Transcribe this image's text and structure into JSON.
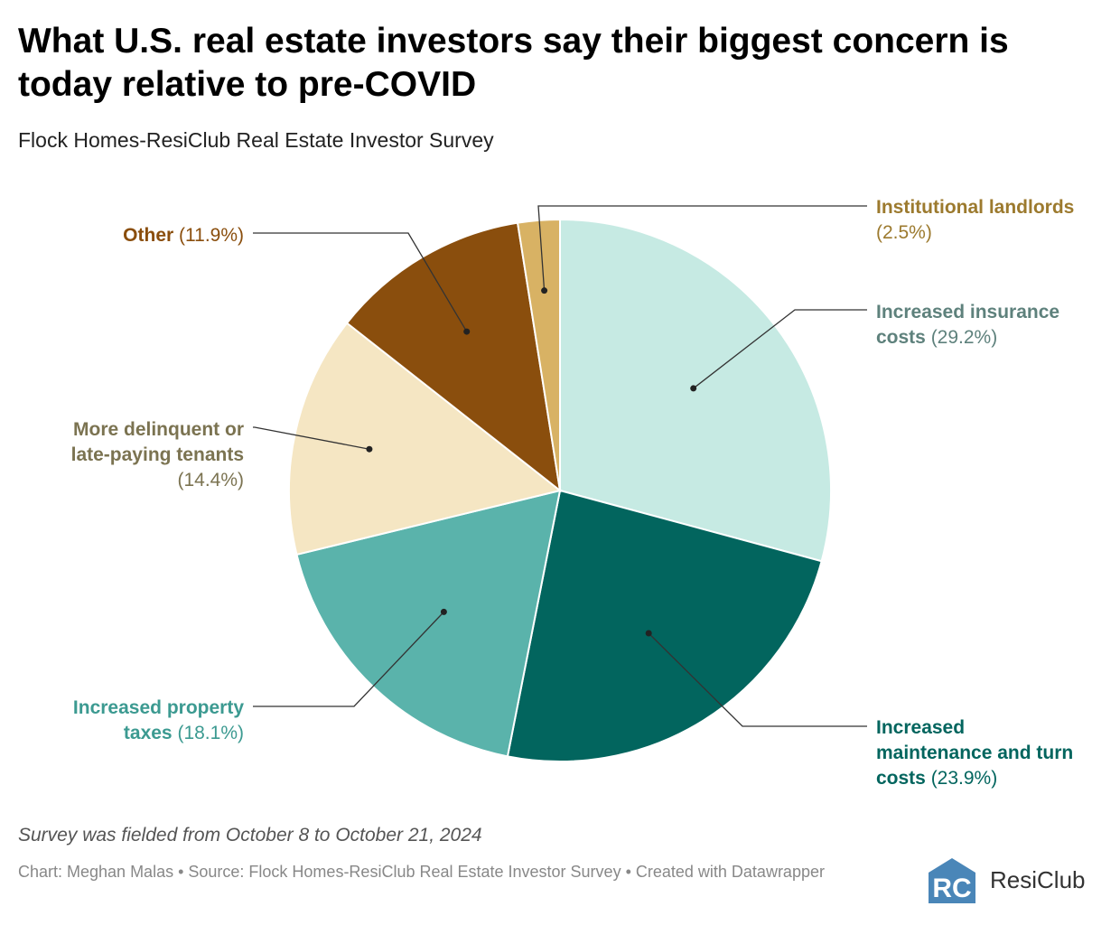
{
  "header": {
    "title": "What U.S. real estate investors say their biggest concern is today relative to pre-COVID",
    "subtitle": "Flock Homes-ResiClub Real Estate Investor Survey"
  },
  "footer": {
    "notes": "Survey was fielded from October 8 to October 21, 2024",
    "credits": "Chart: Meghan Malas • Source: Flock Homes-ResiClub Real Estate Investor Survey • Created with Datawrapper"
  },
  "logo": {
    "text": "ResiClub",
    "mark_letters": "RC",
    "icon": "resiclub-house-logo",
    "color": "#4a86b8"
  },
  "chart_data": {
    "type": "pie",
    "title": "What U.S. real estate investors say their biggest concern is today relative to pre-COVID",
    "subtitle": "Flock Homes-ResiClub Real Estate Investor Survey",
    "slices": [
      {
        "label_lines": [
          "Increased insurance",
          "costs"
        ],
        "value": 29.2,
        "value_label": "(29.2%)",
        "color": "#c6eae3",
        "label_color": "#5e817c"
      },
      {
        "label_lines": [
          "Increased",
          "maintenance and turn",
          "costs"
        ],
        "value": 23.9,
        "value_label": "(23.9%)",
        "color": "#02655e",
        "label_color": "#02655e"
      },
      {
        "label_lines": [
          "Increased property",
          "taxes"
        ],
        "value": 18.1,
        "value_label": "(18.1%)",
        "color": "#5ab3ab",
        "label_color": "#3c9a91"
      },
      {
        "label_lines": [
          "More delinquent or",
          "late-paying tenants"
        ],
        "value": 14.4,
        "value_label": "(14.4%)",
        "color": "#f5e6c3",
        "label_color": "#7b7351"
      },
      {
        "label_lines": [
          "Other"
        ],
        "value": 11.9,
        "value_label": "(11.9%)",
        "color": "#8a4e0d",
        "label_color": "#8a4e0d"
      },
      {
        "label_lines": [
          "Institutional landlords"
        ],
        "value": 2.5,
        "value_label": "(2.5%)",
        "color": "#d8b264",
        "label_color": "#9c7a2e"
      }
    ]
  }
}
